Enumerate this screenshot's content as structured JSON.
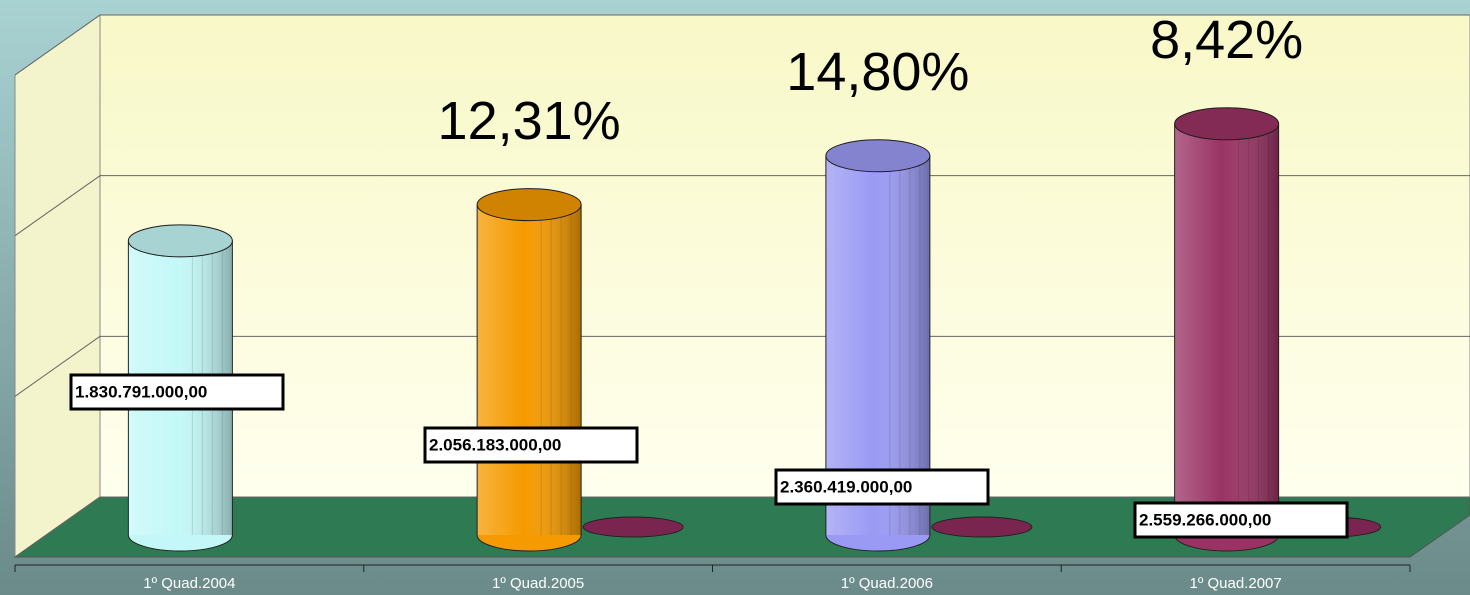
{
  "chart_data": {
    "type": "cylinder",
    "categories": [
      "1º Quad.2004",
      "1º Quad.2005",
      "1º Quad.2006",
      "1º Quad.2007"
    ],
    "values": [
      1830791000,
      2056183000,
      2360419000,
      2559266000
    ],
    "value_labels": [
      "1.830.791.000,00",
      "2.056.183.000,00",
      "2.360.419.000,00",
      "2.559.266.000,00"
    ],
    "growth_labels": [
      null,
      "12,31%",
      "14,80%",
      "8,42%"
    ],
    "colors": [
      "#c4f8f8",
      "#f59a00",
      "#9a9af5",
      "#9a3364"
    ],
    "ylim": [
      0,
      3000000000
    ],
    "yticks": [
      0,
      1000000000,
      2000000000,
      3000000000
    ],
    "grid": true
  }
}
